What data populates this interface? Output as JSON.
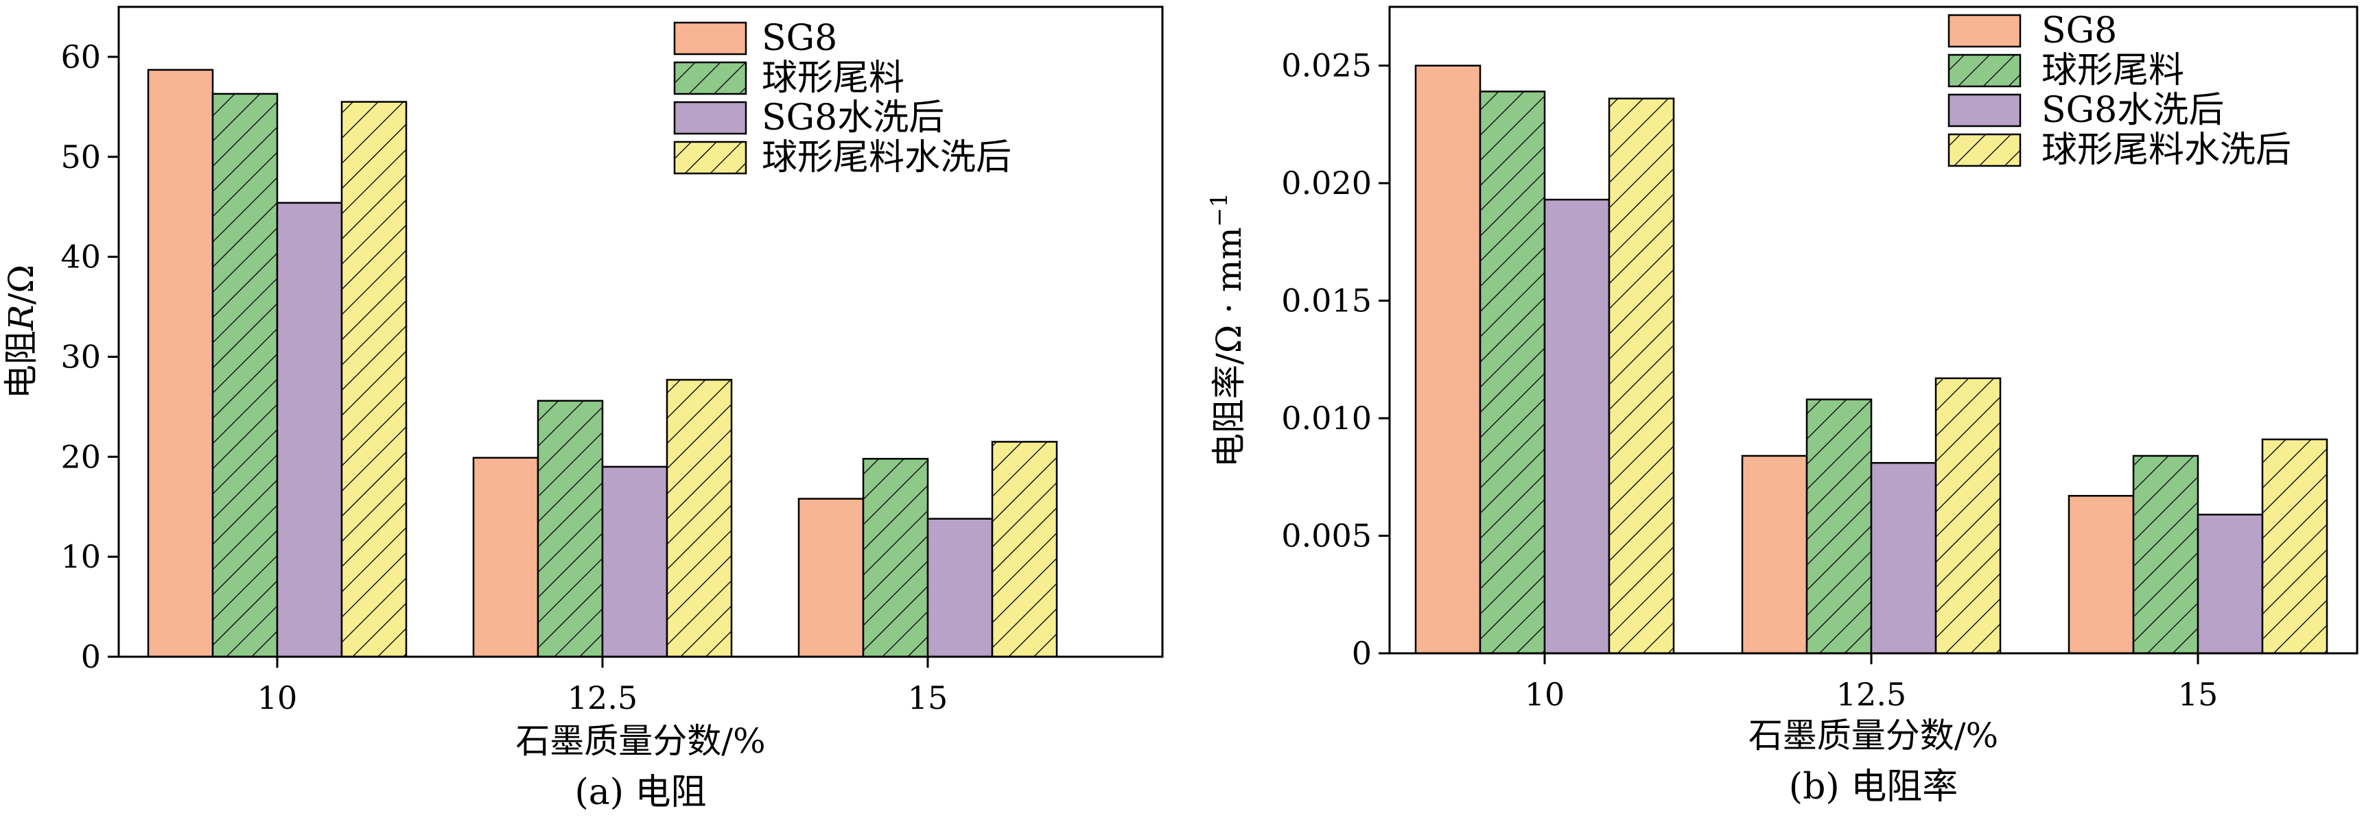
{
  "chart_data": [
    {
      "type": "bar",
      "caption": "(a) 电阻",
      "xlabel": "石墨质量分数/%",
      "ylabel_parts": [
        "电阻",
        "R",
        "/Ω"
      ],
      "categories": [
        "10",
        "12.5",
        "15"
      ],
      "ylim": [
        0,
        65
      ],
      "yticks": [
        0,
        10,
        20,
        30,
        40,
        50,
        60
      ],
      "ytick_labels": [
        "0",
        "10",
        "20",
        "30",
        "40",
        "50",
        "60"
      ],
      "grid": false,
      "legend_position": "top-right",
      "series": [
        {
          "name": "SG8",
          "values": [
            58.7,
            19.9,
            15.8
          ],
          "color": "#f7b594",
          "pattern": "none"
        },
        {
          "name": "球形尾料",
          "values": [
            56.3,
            25.6,
            19.8
          ],
          "color": "#8ec98a",
          "pattern": "hatch"
        },
        {
          "name": "SG8水洗后",
          "values": [
            45.4,
            19.0,
            13.8
          ],
          "color": "#b8a2c8",
          "pattern": "none"
        },
        {
          "name": "球形尾料水洗后",
          "values": [
            55.5,
            27.7,
            21.5
          ],
          "color": "#f6ee91",
          "pattern": "hatch"
        }
      ]
    },
    {
      "type": "bar",
      "caption": "(b) 电阻率",
      "xlabel": "石墨质量分数/%",
      "ylabel_parts": [
        "电阻率/Ω · mm",
        "−1"
      ],
      "categories": [
        "10",
        "12.5",
        "15"
      ],
      "ylim": [
        0,
        0.0275
      ],
      "yticks": [
        0,
        0.005,
        0.01,
        0.015,
        0.02,
        0.025
      ],
      "ytick_labels": [
        "0",
        "0.005",
        "0.010",
        "0.015",
        "0.020",
        "0.025"
      ],
      "grid": false,
      "legend_position": "top-right",
      "series": [
        {
          "name": "SG8",
          "values": [
            0.025,
            0.0084,
            0.0067
          ],
          "color": "#f7b594",
          "pattern": "none"
        },
        {
          "name": "球形尾料",
          "values": [
            0.0239,
            0.0108,
            0.0084
          ],
          "color": "#8ec98a",
          "pattern": "hatch"
        },
        {
          "name": "SG8水洗后",
          "values": [
            0.0193,
            0.0081,
            0.0059
          ],
          "color": "#b8a2c8",
          "pattern": "none"
        },
        {
          "name": "球形尾料水洗后",
          "values": [
            0.0236,
            0.0117,
            0.0091
          ],
          "color": "#f6ee91",
          "pattern": "hatch"
        }
      ]
    }
  ]
}
